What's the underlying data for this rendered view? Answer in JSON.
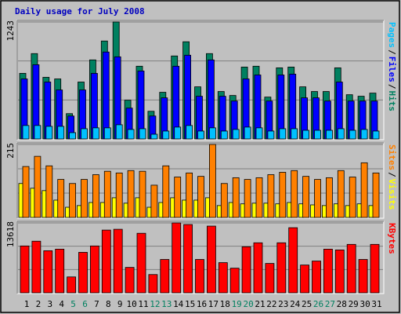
{
  "chart_data": [
    {
      "type": "bar",
      "title": "Daily usage for July 2008",
      "title_color": "#0000c0",
      "ylim": [
        0,
        1243
      ],
      "yticks": [
        1243
      ],
      "grid": true,
      "grid_divisions": 3,
      "legend_separator": "/",
      "series": [
        {
          "name": "Hits",
          "color": "#008060",
          "values": [
            697,
            907,
            655,
            638,
            269,
            605,
            840,
            1041,
            1243,
            412,
            773,
            294,
            496,
            882,
            1033,
            554,
            907,
            504,
            462,
            764,
            773,
            445,
            756,
            764,
            554,
            504,
            504,
            756,
            470,
            454,
            487
          ]
        },
        {
          "name": "Files",
          "color": "#0000ff",
          "values": [
            638,
            789,
            605,
            521,
            244,
            521,
            697,
            924,
            873,
            328,
            722,
            244,
            437,
            773,
            890,
            454,
            840,
            454,
            403,
            638,
            680,
            403,
            680,
            689,
            437,
            437,
            403,
            605,
            403,
            403,
            403
          ]
        },
        {
          "name": "Pages",
          "color": "#00c0ff",
          "values": [
            143,
            143,
            134,
            134,
            67,
            109,
            118,
            118,
            151,
            101,
            109,
            50,
            84,
            126,
            143,
            84,
            118,
            84,
            101,
            126,
            118,
            84,
            109,
            109,
            92,
            92,
            92,
            109,
            92,
            101,
            84
          ]
        }
      ]
    },
    {
      "type": "bar",
      "ylim": [
        0,
        215
      ],
      "yticks": [
        215
      ],
      "grid": true,
      "grid_divisions": 3,
      "legend_separator": "/",
      "series": [
        {
          "name": "Visits",
          "color": "#ffff00",
          "values": [
            100,
            86,
            79,
            51,
            30,
            35,
            44,
            44,
            58,
            42,
            58,
            30,
            44,
            58,
            51,
            51,
            58,
            35,
            44,
            40,
            42,
            42,
            40,
            44,
            40,
            37,
            35,
            40,
            35,
            40,
            35
          ]
        },
        {
          "name": "Sites",
          "color": "#ff8000",
          "values": [
            150,
            180,
            152,
            112,
            100,
            112,
            126,
            136,
            131,
            138,
            136,
            95,
            152,
            119,
            131,
            121,
            215,
            100,
            117,
            112,
            117,
            126,
            133,
            138,
            121,
            112,
            117,
            138,
            119,
            161,
            131
          ]
        }
      ]
    },
    {
      "type": "bar",
      "ylim": [
        0,
        13618
      ],
      "yticks": [
        13618
      ],
      "grid": true,
      "grid_divisions": 3,
      "categories": [
        "1",
        "2",
        "3",
        "4",
        "5",
        "6",
        "7",
        "8",
        "9",
        "10",
        "11",
        "12",
        "13",
        "14",
        "15",
        "16",
        "17",
        "18",
        "19",
        "20",
        "21",
        "22",
        "23",
        "24",
        "25",
        "26",
        "27",
        "28",
        "29",
        "30",
        "31"
      ],
      "x_label_colors": [
        "#000",
        "#000",
        "#000",
        "#000",
        "#008060",
        "#008060",
        "#000",
        "#000",
        "#000",
        "#000",
        "#000",
        "#008060",
        "#008060",
        "#000",
        "#000",
        "#000",
        "#000",
        "#000",
        "#008060",
        "#008060",
        "#000",
        "#000",
        "#000",
        "#000",
        "#000",
        "#008060",
        "#008060",
        "#000",
        "#000",
        "#000",
        "#000"
      ],
      "series": [
        {
          "name": "KBytes",
          "color": "#ff0000",
          "values": [
            9130,
            10060,
            8200,
            8510,
            3095,
            7890,
            9130,
            12225,
            12380,
            4950,
            11600,
            3560,
            6500,
            13618,
            13310,
            6500,
            13000,
            5880,
            4800,
            8975,
            9750,
            5725,
            9750,
            12690,
            5415,
            6190,
            8510,
            8355,
            9440,
            6500,
            9440
          ]
        }
      ]
    }
  ]
}
